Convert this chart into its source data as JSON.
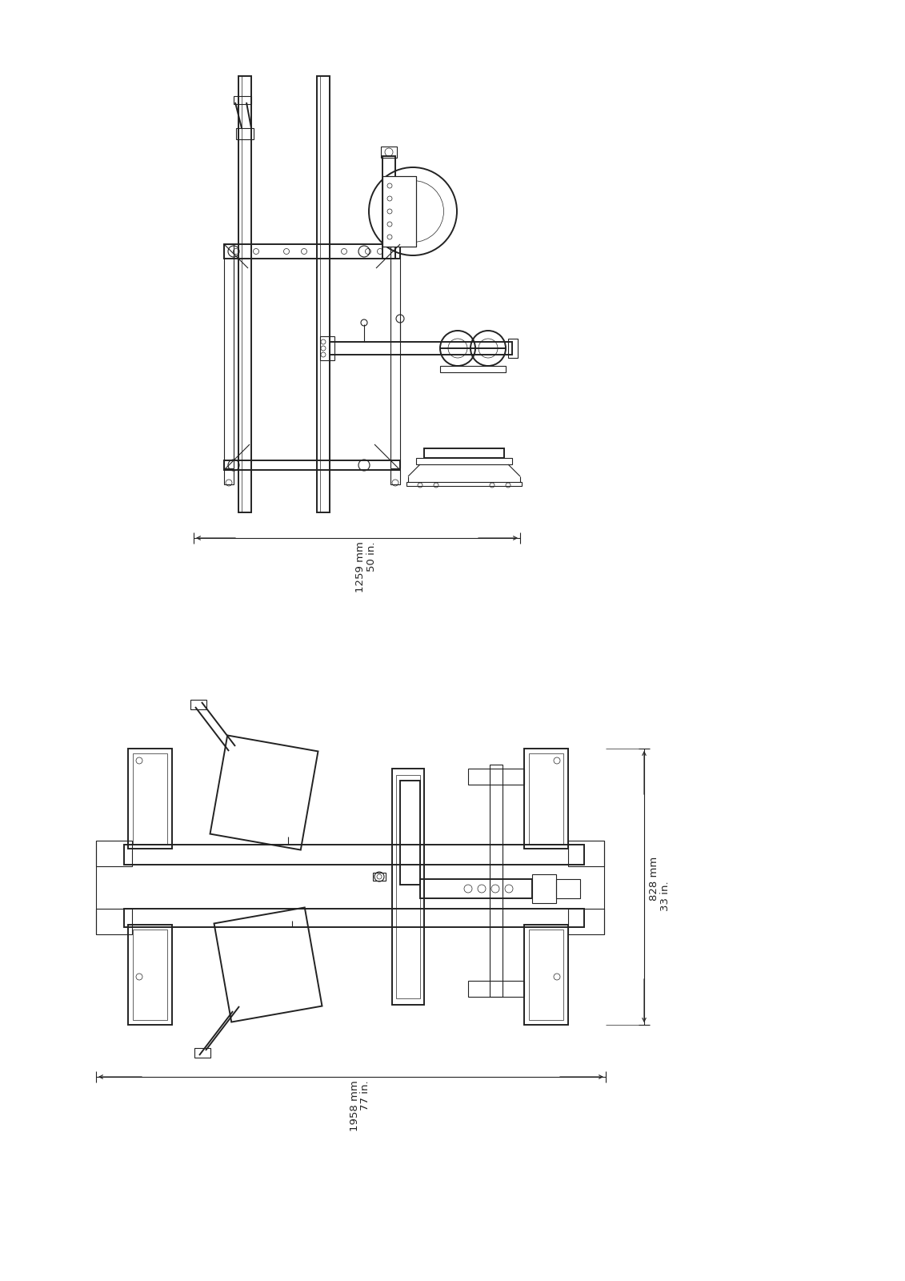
{
  "bg_color": "#ffffff",
  "line_color": "#222222",
  "lw": 0.8,
  "lw2": 1.4,
  "lw_t": 0.5,
  "view1": {
    "dim_text1": "1259 mm",
    "dim_text2": "50 in."
  },
  "view2": {
    "dim_text1": "1958 mm",
    "dim_text2": "77 in.",
    "dim_text3": "828 mm",
    "dim_text4": "33 in."
  }
}
